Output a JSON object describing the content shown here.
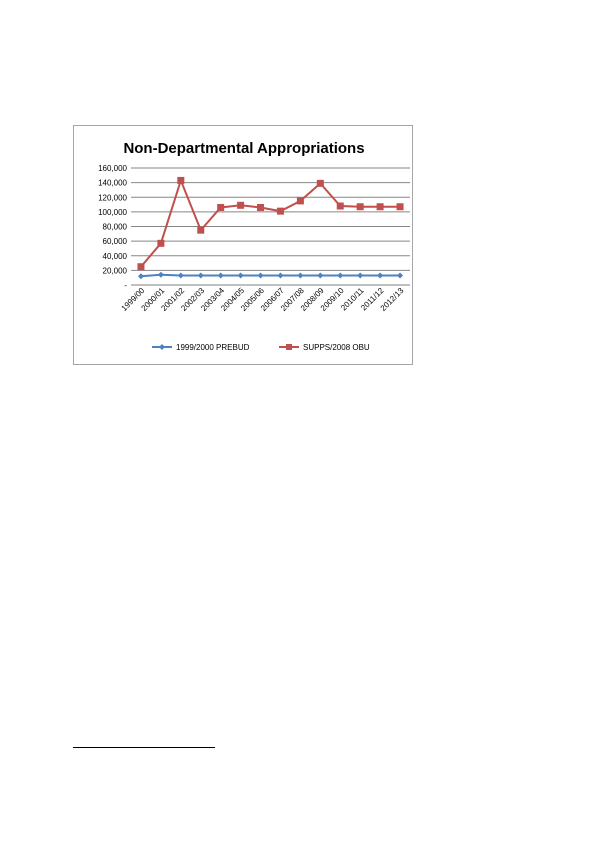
{
  "chart_data": {
    "type": "line",
    "title": "Non-Departmental Appropriations",
    "xlabel": "",
    "ylabel": "",
    "categories": [
      "1999/00",
      "2000/01",
      "2001/02",
      "2002/03",
      "2003/04",
      "2004/05",
      "2005/06",
      "2006/07",
      "2007/08",
      "2008/09",
      "2009/10",
      "2010/11",
      "2011/12",
      "2012/13"
    ],
    "ylim": [
      0,
      160000
    ],
    "yticks": [
      0,
      20000,
      40000,
      60000,
      80000,
      100000,
      120000,
      140000,
      160000
    ],
    "ytick_labels": [
      "-",
      "20,000",
      "40,000",
      "60,000",
      "80,000",
      "100,000",
      "120,000",
      "140,000",
      "160,000"
    ],
    "grid": true,
    "legend_position": "bottom",
    "series": [
      {
        "name": "1999/2000 PREBUD",
        "color": "#4f81bd",
        "marker": "diamond",
        "values": [
          12000,
          14000,
          13000,
          13000,
          13000,
          13000,
          13000,
          13000,
          13000,
          13000,
          13000,
          13000,
          13000,
          13000
        ]
      },
      {
        "name": "SUPPS/2008 OBU",
        "color": "#c0504d",
        "marker": "square",
        "values": [
          25000,
          57000,
          143000,
          75000,
          106000,
          109000,
          106000,
          101000,
          115000,
          139000,
          108000,
          107000,
          107000,
          107000
        ]
      }
    ]
  }
}
